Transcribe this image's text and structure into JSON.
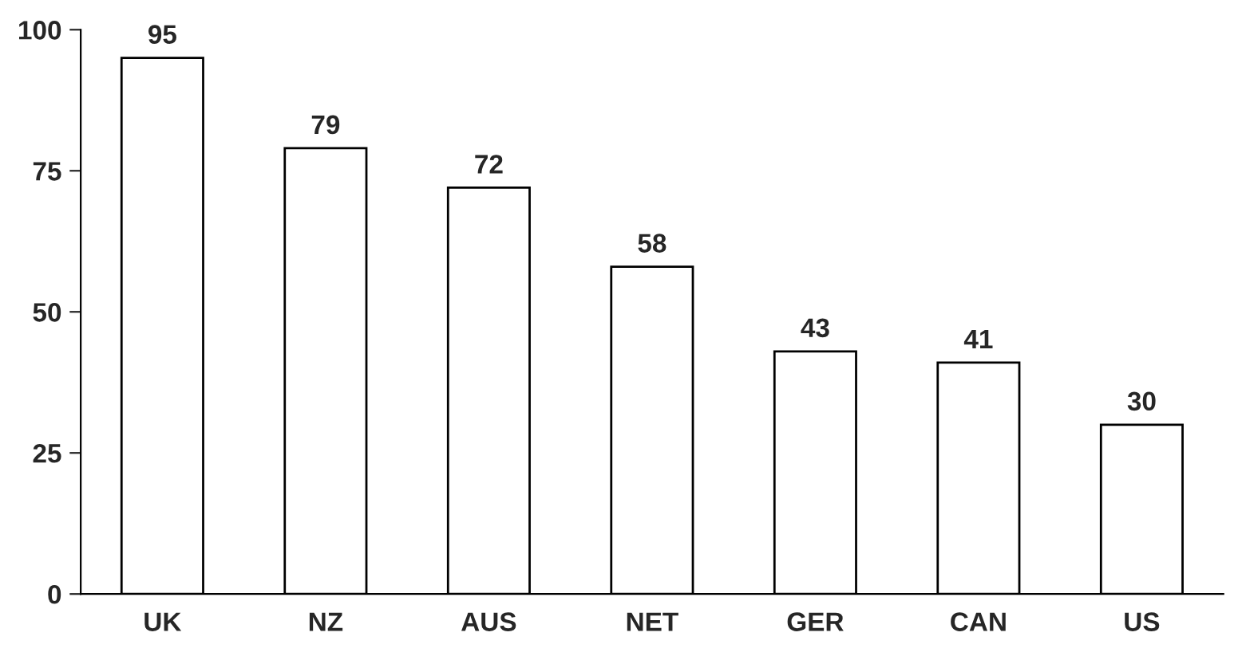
{
  "chart_data": {
    "type": "bar",
    "categories": [
      "UK",
      "NZ",
      "AUS",
      "NET",
      "GER",
      "CAN",
      "US"
    ],
    "values": [
      95,
      79,
      72,
      58,
      43,
      41,
      30
    ],
    "color": "#ffffff",
    "ylim": [
      0,
      100
    ],
    "yticks": [
      0,
      25,
      50,
      75,
      100
    ],
    "grid": false,
    "data_labels": true
  }
}
